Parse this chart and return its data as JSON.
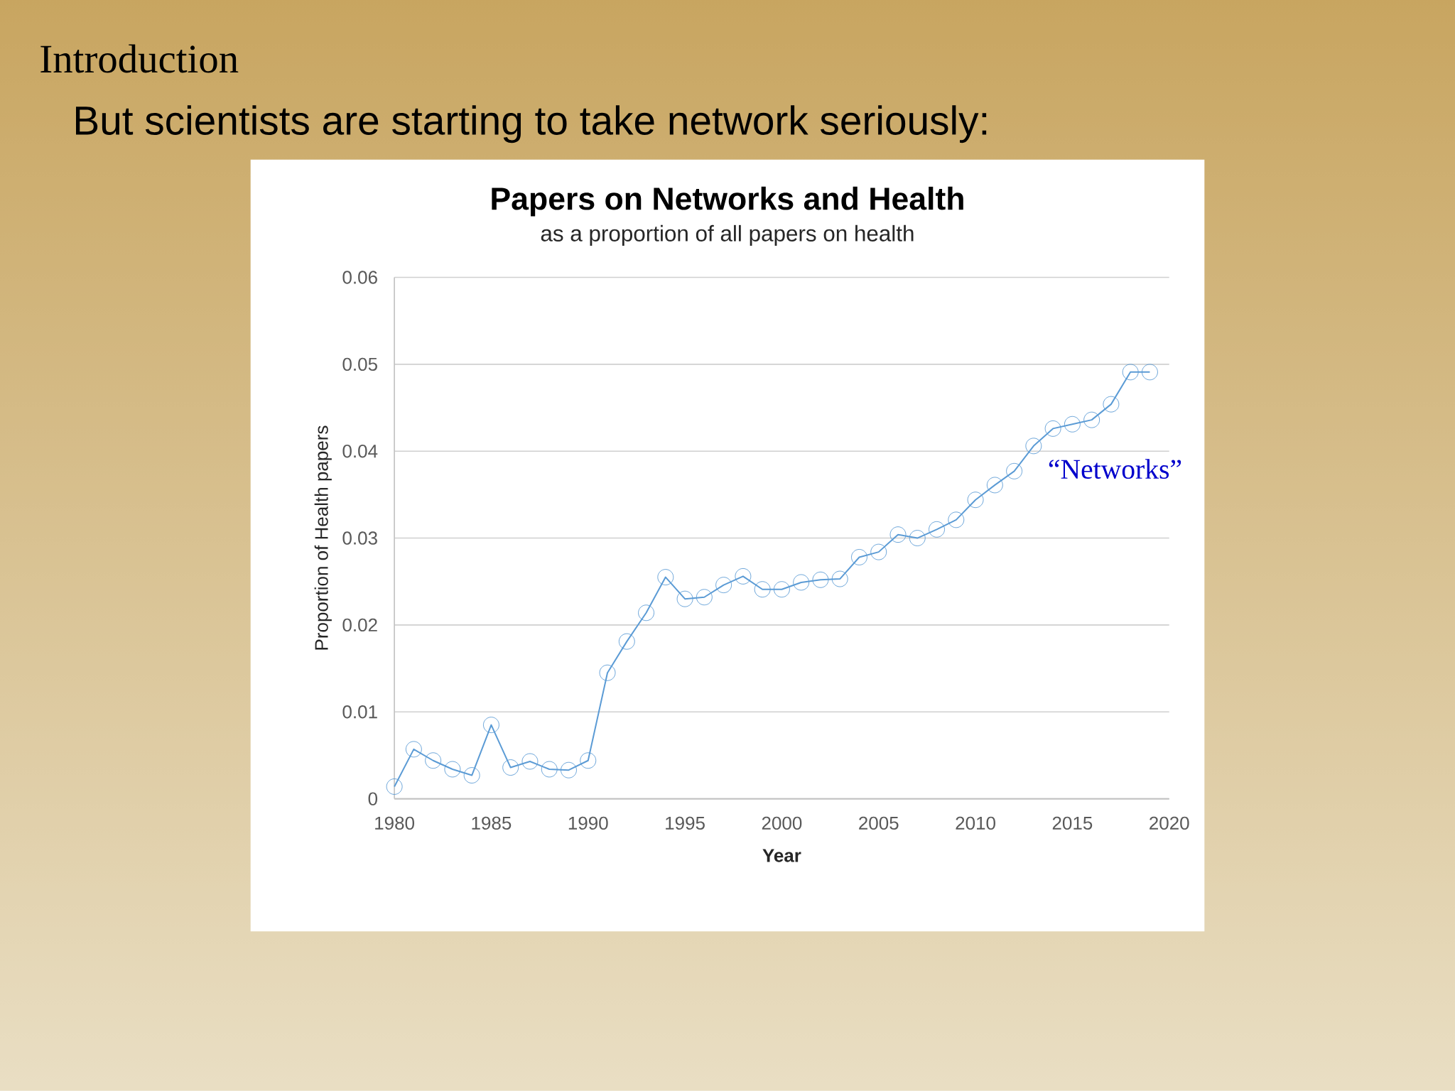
{
  "chart_data": {
    "type": "line",
    "title": "Papers on Networks and Health",
    "subtitle": "as a proportion of all papers on health",
    "xlabel": "Year",
    "ylabel": "Proportion of Health papers",
    "annotations": [
      "Introduction",
      "But scientists are starting to take network seriously:"
    ],
    "x": [
      1980,
      1981,
      1982,
      1983,
      1984,
      1985,
      1986,
      1987,
      1988,
      1989,
      1990,
      1991,
      1992,
      1993,
      1994,
      1995,
      1996,
      1997,
      1998,
      1999,
      2000,
      2001,
      2002,
      2003,
      2004,
      2005,
      2006,
      2007,
      2008,
      2009,
      2010,
      2011,
      2012,
      2013,
      2014,
      2015,
      2016,
      2017,
      2018,
      2019
    ],
    "series": [
      {
        "name": "“Networks”",
        "color": "#5b9bd5",
        "values": [
          0.0014,
          0.0057,
          0.0044,
          0.0034,
          0.0027,
          0.0085,
          0.0036,
          0.0043,
          0.0034,
          0.0033,
          0.0044,
          0.0145,
          0.0181,
          0.0214,
          0.0255,
          0.023,
          0.0232,
          0.0246,
          0.0256,
          0.0241,
          0.0241,
          0.0249,
          0.0252,
          0.0253,
          0.0278,
          0.0284,
          0.0304,
          0.03,
          0.031,
          0.0321,
          0.0344,
          0.0361,
          0.0377,
          0.0406,
          0.0426,
          0.0431,
          0.0436,
          0.0454,
          0.0491,
          0.0491
        ]
      }
    ],
    "xlim": [
      1980,
      2020
    ],
    "xticks": [
      1980,
      1985,
      1990,
      1995,
      2000,
      2005,
      2010,
      2015,
      2020
    ],
    "ylim": [
      0,
      0.06
    ],
    "yticks": [
      0,
      0.01,
      0.02,
      0.03,
      0.04,
      0.05,
      0.06
    ],
    "grid": "y",
    "marker": "circle",
    "line_style": "solid"
  }
}
